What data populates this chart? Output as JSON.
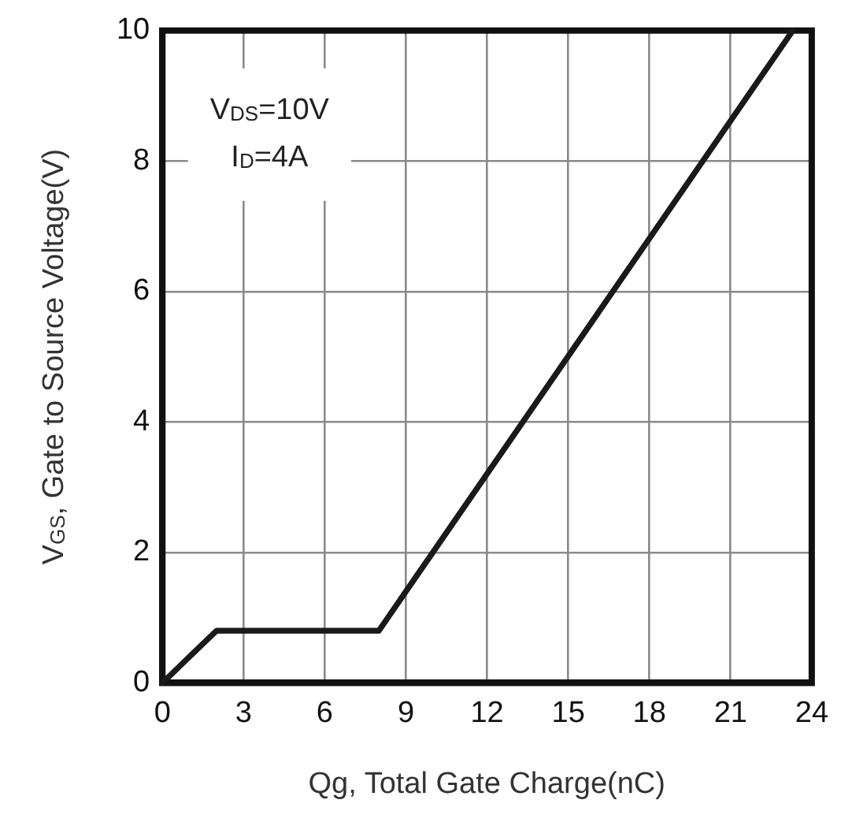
{
  "chart_data": {
    "type": "line",
    "xlabel": "Qg, Total Gate Charge(nC)",
    "ylabel": "V$_{GS}$, Gate to Source Voltage(V)",
    "annotations": [
      "V$_{DS}$=10V",
      "I$_{D}$=4A"
    ],
    "x": [
      0,
      2,
      8,
      23.3
    ],
    "series": [
      {
        "color": "#1a1a1a",
        "values": [
          0,
          0.8,
          0.8,
          10
        ]
      }
    ],
    "xlim": [
      0,
      24
    ],
    "xticks": [
      0,
      3,
      6,
      9,
      12,
      15,
      18,
      21,
      24
    ],
    "ylim": [
      0,
      10
    ],
    "yticks": [
      0,
      2,
      4,
      6,
      8,
      10
    ],
    "grid": true,
    "legend": false,
    "marker": "none",
    "line_style": "solid"
  }
}
